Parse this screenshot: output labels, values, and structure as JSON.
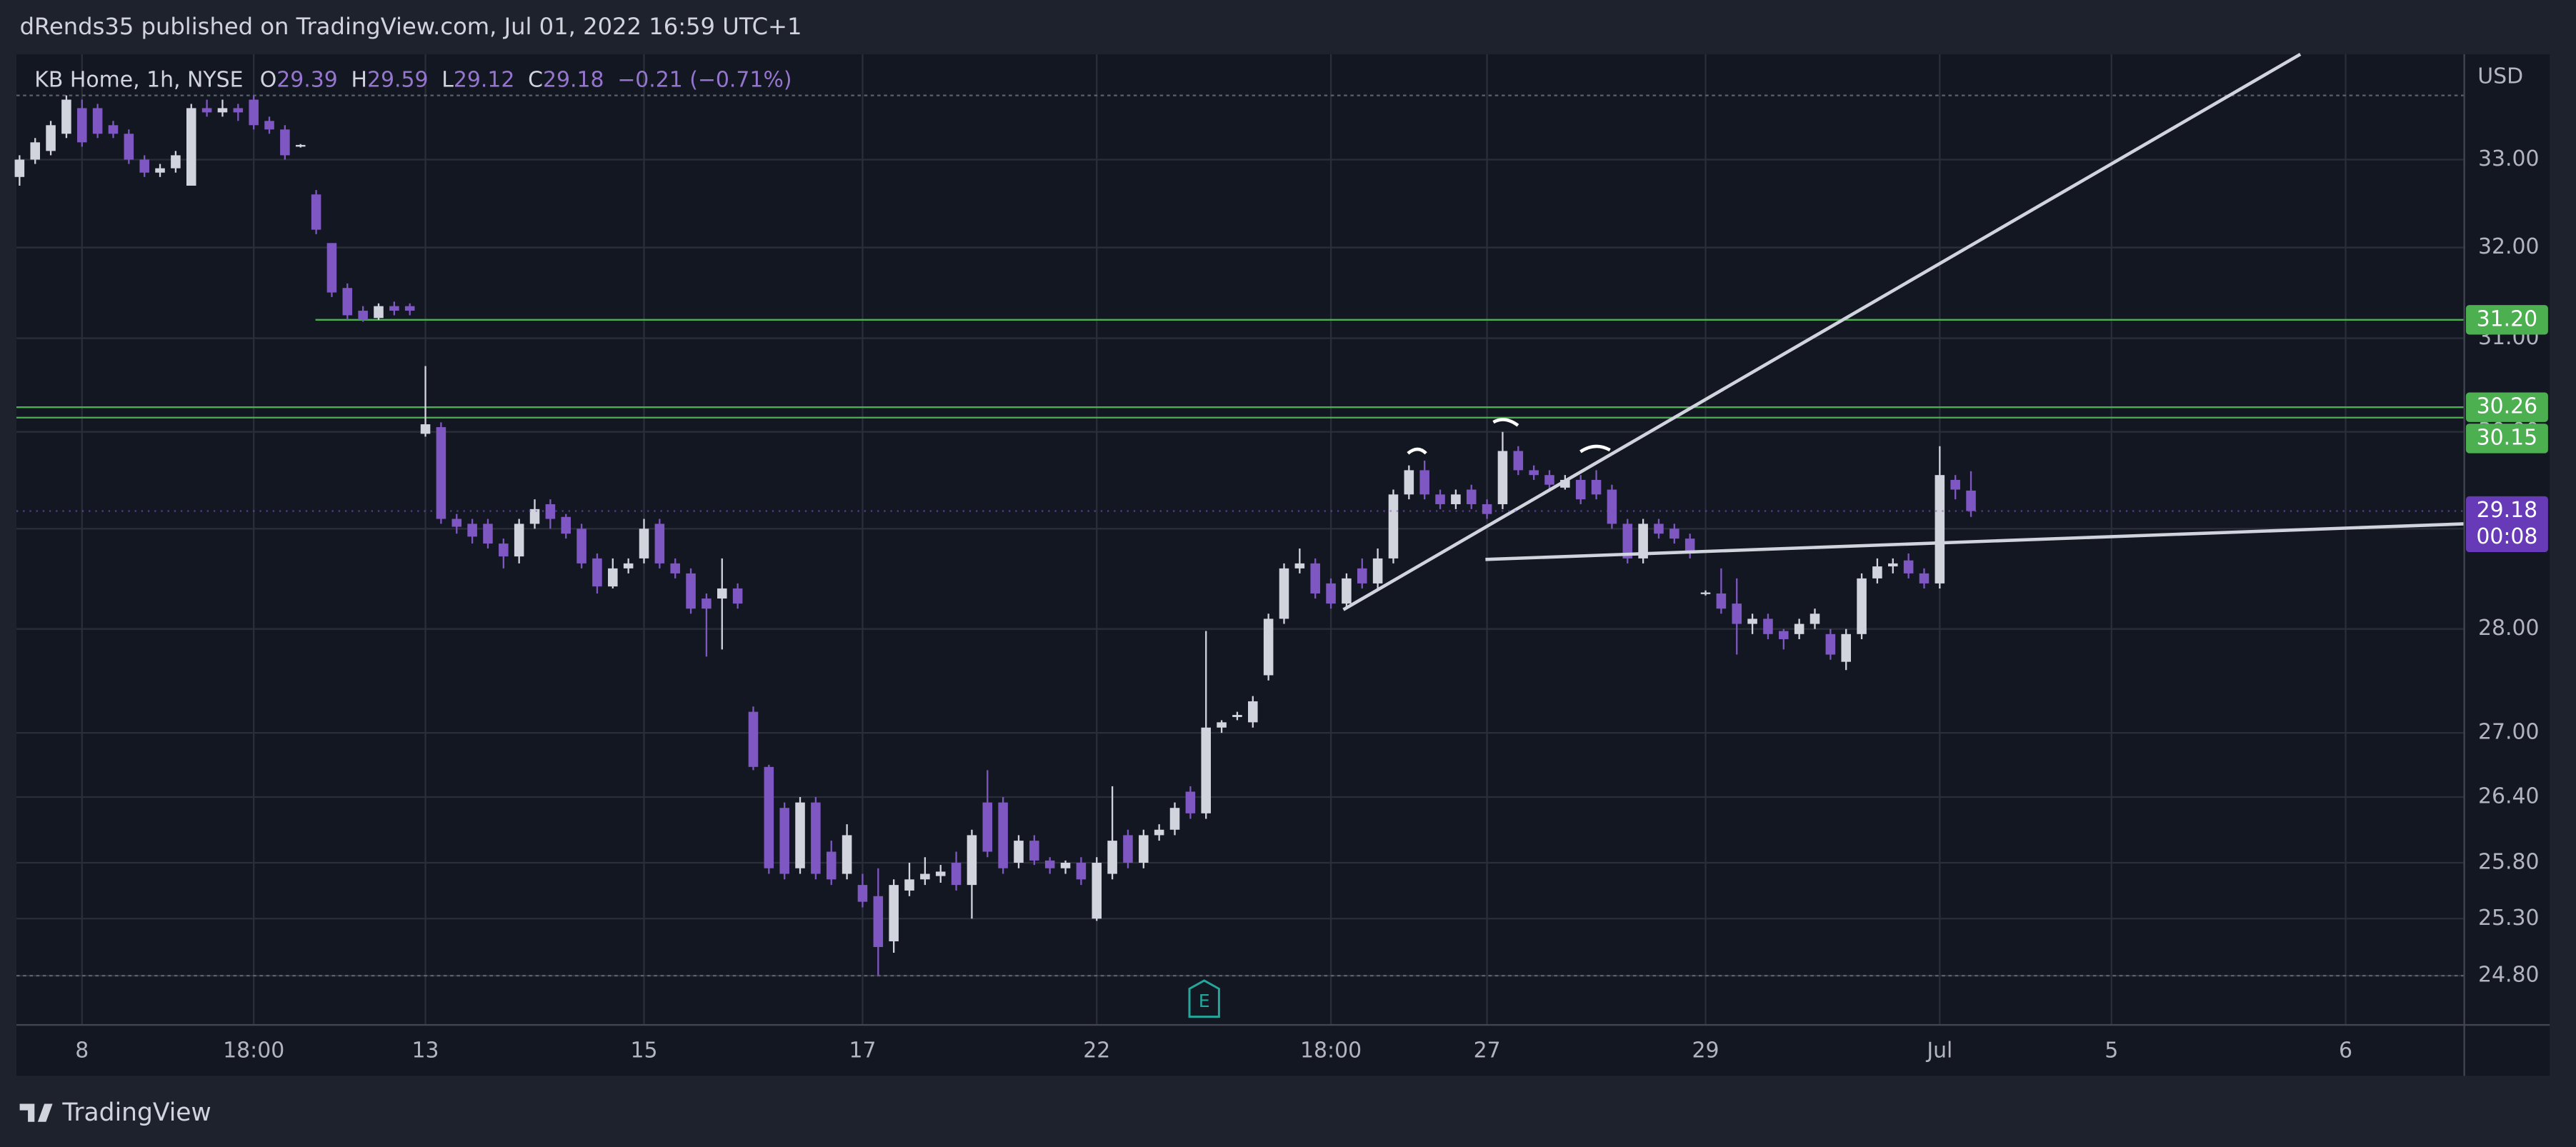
{
  "header": {
    "published": "dRends35 published on TradingView.com, Jul 01, 2022 16:59 UTC+1",
    "brand": "TradingView"
  },
  "chart_data": {
    "type": "candlestick",
    "legend": {
      "symbol": "KB Home, 1h, NYSE",
      "o": "O",
      "h": "H",
      "l": "L",
      "c": "C",
      "change": "−0.21 (−0.71%)"
    },
    "currency": "USD",
    "countdown": "00:08",
    "earnings_marker": "E",
    "up_color": "#d1d4dc",
    "down_color": "#7e57c2",
    "log_scale": true,
    "grid": true,
    "xlim": [
      -0.2,
      156.6
    ],
    "ylim": [
      24.39,
      34.24
    ],
    "xticks": [
      {
        "value": 4,
        "label": "8"
      },
      {
        "value": 15,
        "label": "18:00"
      },
      {
        "value": 26,
        "label": "13"
      },
      {
        "value": 40,
        "label": "15"
      },
      {
        "value": 54,
        "label": "17"
      },
      {
        "value": 69,
        "label": "22"
      },
      {
        "value": 84,
        "label": "18:00"
      },
      {
        "value": 94,
        "label": "27"
      },
      {
        "value": 108,
        "label": "29"
      },
      {
        "value": 123,
        "label": "Jul"
      },
      {
        "value": 134,
        "label": "5"
      },
      {
        "value": 149,
        "label": "6"
      }
    ],
    "yticks": [
      {
        "value": 33,
        "label": "33.00"
      },
      {
        "value": 32,
        "label": "32.00"
      },
      {
        "value": 31,
        "label": "31.00"
      },
      {
        "value": 30,
        "label": "30.00"
      },
      {
        "value": 29,
        "label": "29.00"
      },
      {
        "value": 28,
        "label": "28.00"
      },
      {
        "value": 27,
        "label": "27.00"
      },
      {
        "value": 26.4,
        "label": "26.40"
      },
      {
        "value": 25.8,
        "label": "25.80"
      },
      {
        "value": 25.3,
        "label": "25.30"
      },
      {
        "value": 24.8,
        "label": "24.80"
      }
    ],
    "open": [
      32.8,
      33.0,
      33.1,
      33.3,
      33.6,
      33.6,
      33.4,
      33.3,
      33.0,
      32.85,
      32.9,
      32.7,
      33.6,
      33.55,
      33.6,
      33.7,
      33.45,
      33.35,
      33.15,
      32.6,
      32.05,
      31.55,
      31.3,
      31.22,
      31.35,
      31.35,
      29.98,
      30.05,
      29.1,
      29.05,
      29.05,
      28.85,
      28.72,
      29.05,
      29.25,
      29.12,
      29.0,
      28.7,
      28.42,
      28.6,
      28.7,
      29.05,
      28.65,
      28.55,
      28.3,
      28.3,
      28.4,
      27.2,
      26.68,
      26.3,
      25.75,
      26.35,
      25.9,
      25.7,
      25.6,
      25.5,
      25.1,
      25.55,
      25.65,
      25.68,
      25.8,
      25.6,
      26.35,
      26.35,
      25.8,
      26.0,
      25.82,
      25.75,
      25.8,
      25.3,
      25.7,
      26.05,
      25.8,
      26.05,
      26.1,
      26.45,
      26.25,
      27.05,
      27.15,
      27.1,
      27.55,
      28.1,
      28.6,
      28.65,
      28.45,
      28.25,
      28.6,
      28.45,
      28.7,
      29.35,
      29.6,
      29.35,
      29.25,
      29.4,
      29.25,
      29.25,
      29.8,
      29.6,
      29.55,
      29.42,
      29.5,
      29.5,
      29.4,
      29.05,
      28.7,
      29.05,
      29.0,
      28.9,
      28.35,
      28.35,
      28.25,
      28.05,
      28.1,
      27.98,
      27.95,
      28.05,
      27.95,
      27.68,
      27.95,
      28.5,
      28.62,
      28.68,
      28.55,
      28.45,
      29.5,
      29.39
    ],
    "high": [
      33.05,
      33.25,
      33.45,
      33.75,
      33.7,
      33.65,
      33.45,
      33.35,
      33.05,
      32.95,
      33.1,
      33.65,
      33.7,
      33.7,
      33.65,
      33.75,
      33.5,
      33.4,
      33.18,
      32.65,
      32.05,
      31.6,
      31.35,
      31.38,
      31.4,
      31.38,
      30.7,
      30.1,
      29.15,
      29.1,
      29.1,
      28.9,
      29.1,
      29.3,
      29.3,
      29.15,
      29.05,
      28.75,
      28.7,
      28.7,
      29.1,
      29.1,
      28.7,
      28.6,
      28.35,
      28.7,
      28.45,
      27.25,
      26.7,
      26.35,
      26.4,
      26.4,
      26.0,
      26.15,
      25.7,
      25.75,
      25.65,
      25.8,
      25.85,
      25.78,
      25.9,
      26.1,
      26.65,
      26.4,
      26.05,
      26.05,
      25.85,
      25.82,
      25.85,
      25.85,
      26.5,
      26.1,
      26.1,
      26.15,
      26.35,
      26.5,
      27.98,
      27.12,
      27.2,
      27.35,
      28.15,
      28.65,
      28.8,
      28.7,
      28.5,
      28.55,
      28.7,
      28.8,
      29.4,
      29.65,
      29.7,
      29.4,
      29.4,
      29.45,
      29.3,
      30.0,
      29.85,
      29.65,
      29.6,
      29.55,
      29.55,
      29.6,
      29.45,
      29.1,
      29.1,
      29.1,
      29.05,
      28.95,
      28.38,
      28.6,
      28.5,
      28.15,
      28.15,
      28.0,
      28.1,
      28.2,
      28.0,
      28.0,
      28.55,
      28.7,
      28.7,
      28.75,
      28.6,
      29.85,
      29.55,
      29.59
    ],
    "low": [
      32.7,
      32.95,
      33.05,
      33.25,
      33.15,
      33.25,
      33.25,
      32.95,
      32.8,
      32.8,
      32.85,
      32.7,
      33.5,
      33.5,
      33.45,
      33.35,
      33.3,
      33.0,
      33.14,
      32.15,
      31.45,
      31.2,
      31.18,
      31.2,
      31.25,
      31.25,
      29.95,
      29.05,
      28.95,
      28.85,
      28.8,
      28.6,
      28.65,
      29.0,
      29.0,
      28.9,
      28.6,
      28.35,
      28.4,
      28.55,
      28.65,
      28.6,
      28.5,
      28.15,
      27.73,
      27.8,
      28.2,
      26.65,
      25.7,
      25.65,
      25.7,
      25.65,
      25.6,
      25.65,
      25.4,
      24.8,
      25.0,
      25.5,
      25.6,
      25.62,
      25.55,
      25.3,
      25.85,
      25.7,
      25.75,
      25.78,
      25.7,
      25.7,
      25.6,
      25.28,
      25.65,
      25.75,
      25.75,
      26.0,
      26.05,
      26.2,
      26.2,
      27.0,
      27.12,
      27.05,
      27.5,
      28.05,
      28.55,
      28.3,
      28.2,
      28.2,
      28.4,
      28.4,
      28.65,
      29.3,
      29.3,
      29.2,
      29.2,
      29.2,
      29.1,
      29.2,
      29.55,
      29.5,
      29.4,
      29.4,
      29.25,
      29.3,
      29.0,
      28.65,
      28.65,
      28.9,
      28.85,
      28.7,
      28.33,
      28.15,
      27.75,
      27.95,
      27.9,
      27.8,
      27.9,
      28.0,
      27.7,
      27.6,
      27.9,
      28.45,
      28.55,
      28.5,
      28.4,
      28.4,
      29.3,
      29.12
    ],
    "close": [
      33.0,
      33.2,
      33.4,
      33.7,
      33.2,
      33.3,
      33.3,
      33.0,
      32.85,
      32.9,
      33.05,
      33.6,
      33.55,
      33.6,
      33.55,
      33.4,
      33.35,
      33.05,
      33.17,
      32.2,
      31.5,
      31.25,
      31.2,
      31.35,
      31.3,
      31.3,
      30.08,
      29.1,
      29.02,
      28.92,
      28.85,
      28.72,
      29.05,
      29.2,
      29.1,
      28.95,
      28.65,
      28.42,
      28.6,
      28.65,
      29.0,
      28.65,
      28.55,
      28.2,
      28.2,
      28.4,
      28.25,
      26.68,
      25.75,
      25.7,
      26.35,
      25.7,
      25.65,
      26.05,
      25.45,
      25.05,
      25.6,
      25.65,
      25.7,
      25.72,
      25.6,
      26.05,
      25.9,
      25.75,
      26.0,
      25.82,
      25.75,
      25.8,
      25.65,
      25.8,
      26.0,
      25.8,
      26.05,
      26.1,
      26.3,
      26.25,
      27.05,
      27.1,
      27.17,
      27.3,
      28.1,
      28.6,
      28.65,
      28.35,
      28.25,
      28.5,
      28.45,
      28.7,
      29.35,
      29.6,
      29.35,
      29.25,
      29.35,
      29.25,
      29.15,
      29.8,
      29.6,
      29.55,
      29.45,
      29.5,
      29.3,
      29.35,
      29.05,
      28.7,
      29.05,
      28.95,
      28.9,
      28.75,
      28.36,
      28.2,
      28.05,
      28.1,
      27.95,
      27.9,
      28.05,
      28.15,
      27.75,
      27.95,
      28.5,
      28.62,
      28.65,
      28.55,
      28.45,
      29.55,
      29.4,
      29.18
    ],
    "levels": [
      {
        "value": 31.2,
        "label": "31.20"
      },
      {
        "value": 30.26,
        "label": "30.26"
      },
      {
        "value": 30.15,
        "label": "30.15"
      }
    ],
    "level_color": "#4caf50",
    "dotted_levels": [
      33.75,
      24.8
    ],
    "trendlines": [
      {
        "x": [
          84.8,
          146.1
        ],
        "y": [
          28.19,
          34.24
        ]
      },
      {
        "x": [
          93.9,
          156.6
        ],
        "y": [
          28.69,
          29.05
        ]
      }
    ]
  }
}
